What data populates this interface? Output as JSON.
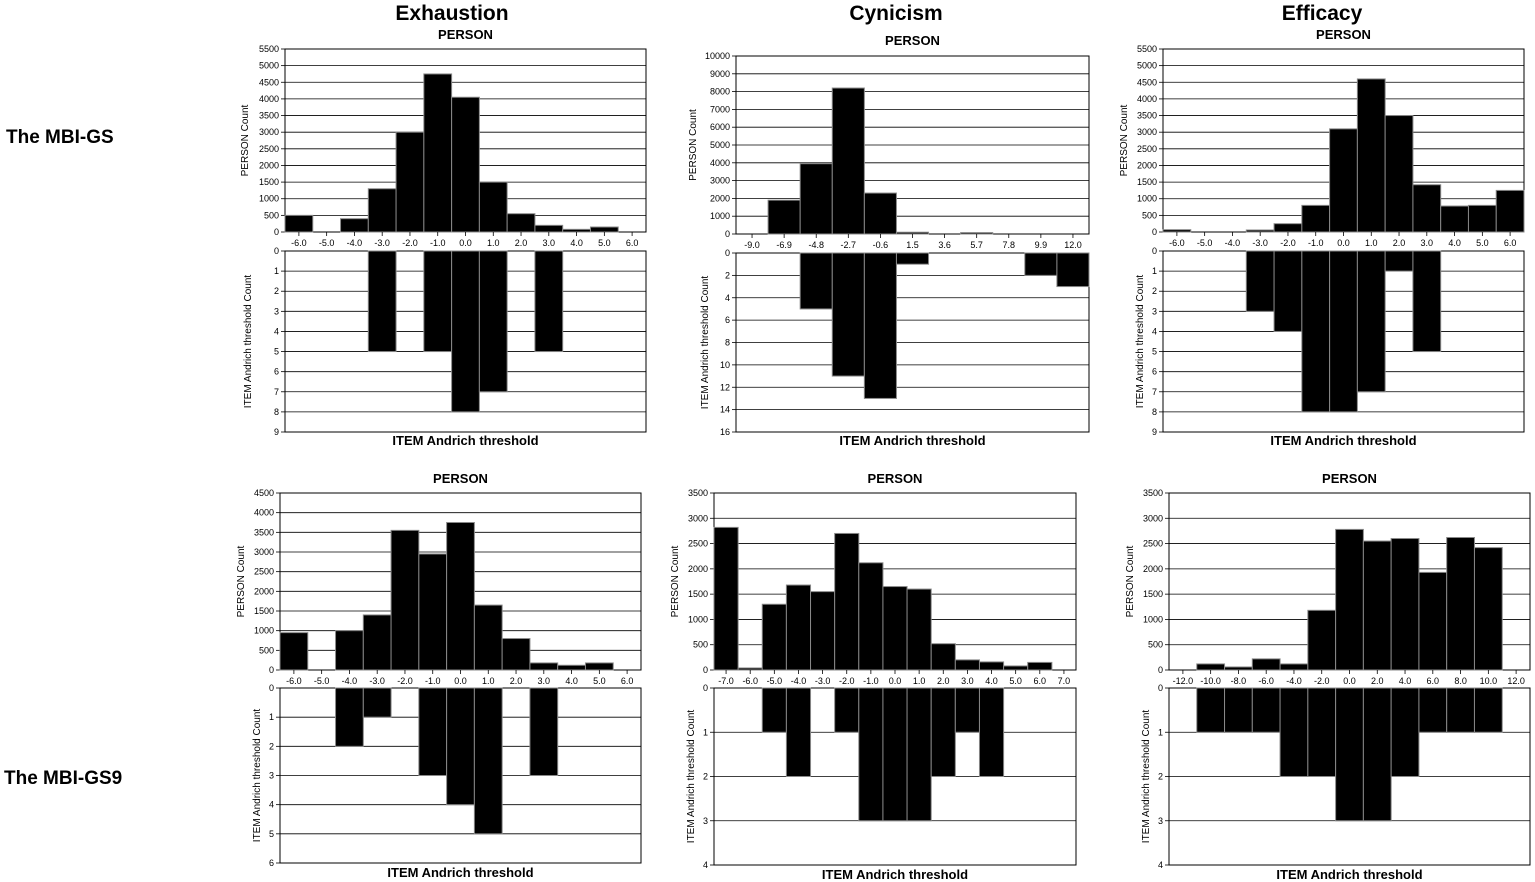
{
  "columns": [
    "Exhaustion",
    "Cynicism",
    "Efficacy"
  ],
  "rows": [
    "The MBI-GS",
    "The MBI-GS9"
  ],
  "chart_data": [
    {
      "type": "bar",
      "row": 0,
      "col": 0,
      "top_title": "PERSON",
      "top_ylabel": "PERSON Count",
      "bottom_xlabel": "ITEM Andrich threshold",
      "bottom_ylabel": "ITEM Andrich threshold Count",
      "x_ticks": [
        "-6.0",
        "-5.0",
        "-4.0",
        "-3.0",
        "-2.0",
        "-1.0",
        "0.0",
        "1.0",
        "2.0",
        "3.0",
        "4.0",
        "5.0",
        "6.0"
      ],
      "x_range": [
        -6.5,
        6.5
      ],
      "bin_width": 1,
      "person": {
        "x": [
          -6,
          -4,
          -3,
          -2,
          -1,
          0,
          1,
          2,
          3,
          4,
          5
        ],
        "values": [
          500,
          400,
          1300,
          3000,
          4750,
          4050,
          1500,
          550,
          200,
          80,
          150
        ]
      },
      "person_ylim": [
        0,
        5500
      ],
      "person_yticks": [
        0,
        500,
        1000,
        1500,
        2000,
        2500,
        3000,
        3500,
        4000,
        4500,
        5000,
        5500
      ],
      "item": {
        "x": [
          -3,
          -1,
          0,
          1,
          3
        ],
        "values": [
          5,
          5,
          8,
          7,
          5
        ]
      },
      "item_ylim": [
        0,
        9
      ],
      "item_yticks": [
        0,
        1,
        2,
        3,
        4,
        5,
        6,
        7,
        8,
        9
      ]
    },
    {
      "type": "bar",
      "row": 0,
      "col": 1,
      "top_title": "PERSON",
      "top_ylabel": "PERSON Count",
      "bottom_xlabel": "ITEM Andrich threshold",
      "bottom_ylabel": "ITEM Andrich threshold Count",
      "x_ticks": [
        "-9.0",
        "-6.9",
        "-4.8",
        "-2.7",
        "-0.6",
        "1.5",
        "3.6",
        "5.7",
        "7.8",
        "9.9",
        "12.0"
      ],
      "x_range": [
        -10.05,
        13.05
      ],
      "bin_width": 2.1,
      "person": {
        "x": [
          -6.9,
          -4.8,
          -2.7,
          -0.6,
          1.5,
          5.7
        ],
        "values": [
          1900,
          3950,
          8200,
          2300,
          100,
          80
        ]
      },
      "person_ylim": [
        0,
        10000
      ],
      "person_yticks": [
        0,
        1000,
        2000,
        3000,
        4000,
        5000,
        6000,
        7000,
        8000,
        9000,
        10000
      ],
      "item": {
        "x": [
          -4.8,
          -2.7,
          -0.6,
          1.5,
          9.9,
          12.0
        ],
        "values": [
          5,
          11,
          13,
          1,
          2,
          3
        ]
      },
      "item_ylim": [
        0,
        16
      ],
      "item_yticks": [
        0,
        2,
        4,
        6,
        8,
        10,
        12,
        14,
        16
      ]
    },
    {
      "type": "bar",
      "row": 0,
      "col": 2,
      "top_title": "PERSON",
      "top_ylabel": "PERSON Count",
      "bottom_xlabel": "ITEM Andrich threshold",
      "bottom_ylabel": "ITEM Andrich threshold Count",
      "x_ticks": [
        "-6.0",
        "-5.0",
        "-4.0",
        "-3.0",
        "-2.0",
        "-1.0",
        "0.0",
        "1.0",
        "2.0",
        "3.0",
        "4.0",
        "5.0",
        "6.0"
      ],
      "x_range": [
        -6.5,
        6.5
      ],
      "bin_width": 1,
      "person": {
        "x": [
          -6,
          -3,
          -2,
          -1,
          0,
          1,
          2,
          3,
          4,
          5,
          6
        ],
        "values": [
          70,
          60,
          250,
          800,
          3100,
          4600,
          3500,
          1420,
          780,
          800,
          1250
        ]
      },
      "person_ylim": [
        0,
        5500
      ],
      "person_yticks": [
        0,
        500,
        1000,
        1500,
        2000,
        2500,
        3000,
        3500,
        4000,
        4500,
        5000,
        5500
      ],
      "item": {
        "x": [
          -3,
          -2,
          -1,
          0,
          1,
          2,
          3
        ],
        "values": [
          3,
          4,
          8,
          8,
          7,
          1,
          5
        ]
      },
      "item_ylim": [
        0,
        9
      ],
      "item_yticks": [
        0,
        1,
        2,
        3,
        4,
        5,
        6,
        7,
        8,
        9
      ]
    },
    {
      "type": "bar",
      "row": 1,
      "col": 0,
      "top_title": "PERSON",
      "top_ylabel": "PERSON Count",
      "bottom_xlabel": "ITEM Andrich threshold",
      "bottom_ylabel": "ITEM Andrich threshold Count",
      "x_ticks": [
        "-6.0",
        "-5.0",
        "-4.0",
        "-3.0",
        "-2.0",
        "-1.0",
        "0.0",
        "1.0",
        "2.0",
        "3.0",
        "4.0",
        "5.0",
        "6.0"
      ],
      "x_range": [
        -6.5,
        6.5
      ],
      "bin_width": 1,
      "person": {
        "x": [
          -6,
          -4,
          -3,
          -2,
          -1,
          0,
          1,
          2,
          3,
          4,
          5
        ],
        "values": [
          950,
          1000,
          1400,
          3550,
          2950,
          3750,
          1650,
          800,
          180,
          120,
          180
        ]
      },
      "person_ylim": [
        0,
        4500
      ],
      "person_yticks": [
        0,
        500,
        1000,
        1500,
        2000,
        2500,
        3000,
        3500,
        4000,
        4500
      ],
      "item": {
        "x": [
          -4,
          -3,
          -1,
          0,
          1,
          3
        ],
        "values": [
          2,
          1,
          3,
          4,
          5,
          3
        ]
      },
      "item_ylim": [
        0,
        6
      ],
      "item_yticks": [
        0,
        1,
        2,
        3,
        4,
        5,
        6
      ]
    },
    {
      "type": "bar",
      "row": 1,
      "col": 1,
      "top_title": "PERSON",
      "top_ylabel": "PERSON Count",
      "bottom_xlabel": "ITEM Andrich threshold",
      "bottom_ylabel": "ITEM Andrich threshold Count",
      "x_ticks": [
        "-7.0",
        "-6.0",
        "-5.0",
        "-4.0",
        "-3.0",
        "-2.0",
        "-1.0",
        "0.0",
        "1.0",
        "2.0",
        "3.0",
        "4.0",
        "5.0",
        "6.0",
        "7.0"
      ],
      "x_range": [
        -7.5,
        7.5
      ],
      "bin_width": 1,
      "person": {
        "x": [
          -7,
          -6,
          -5,
          -4,
          -3,
          -2,
          -1,
          0,
          1,
          2,
          3,
          4,
          5,
          6
        ],
        "values": [
          2820,
          40,
          1300,
          1680,
          1550,
          2700,
          2120,
          1650,
          1600,
          520,
          200,
          160,
          80,
          150
        ]
      },
      "person_ylim": [
        0,
        3500
      ],
      "person_yticks": [
        0,
        500,
        1000,
        1500,
        2000,
        2500,
        3000,
        3500
      ],
      "item": {
        "x": [
          -5,
          -4,
          -2,
          -1,
          0,
          1,
          2,
          3,
          4
        ],
        "values": [
          1,
          2,
          1,
          3,
          3,
          3,
          2,
          1,
          2
        ]
      },
      "item_ylim": [
        0,
        4
      ],
      "item_yticks": [
        0,
        1,
        2,
        3,
        4
      ]
    },
    {
      "type": "bar",
      "row": 1,
      "col": 2,
      "top_title": "PERSON",
      "top_ylabel": "PERSON Count",
      "bottom_xlabel": "ITEM Andrich threshold",
      "bottom_ylabel": "ITEM Andrich threshold Count",
      "x_ticks": [
        "-12.0",
        "-10.0",
        "-8.0",
        "-6.0",
        "-4.0",
        "-2.0",
        "0.0",
        "2.0",
        "4.0",
        "6.0",
        "8.0",
        "10.0",
        "12.0"
      ],
      "x_range": [
        -13,
        13
      ],
      "bin_width": 2,
      "person": {
        "x": [
          -10,
          -8,
          -6,
          -4,
          -2,
          0,
          2,
          4,
          6,
          8,
          10
        ],
        "values": [
          120,
          60,
          220,
          120,
          1180,
          2780,
          2550,
          2600,
          1930,
          2620,
          2420
        ]
      },
      "person_ylim": [
        0,
        3500
      ],
      "person_yticks": [
        0,
        500,
        1000,
        1500,
        2000,
        2500,
        3000,
        3500
      ],
      "item": {
        "x": [
          -10,
          -8,
          -6,
          -4,
          -2,
          0,
          2,
          4,
          6,
          8,
          10
        ],
        "values": [
          1,
          1,
          1,
          2,
          2,
          3,
          3,
          2,
          1,
          1,
          1
        ]
      },
      "item_ylim": [
        0,
        4
      ],
      "item_yticks": [
        0,
        1,
        2,
        3,
        4
      ]
    }
  ]
}
